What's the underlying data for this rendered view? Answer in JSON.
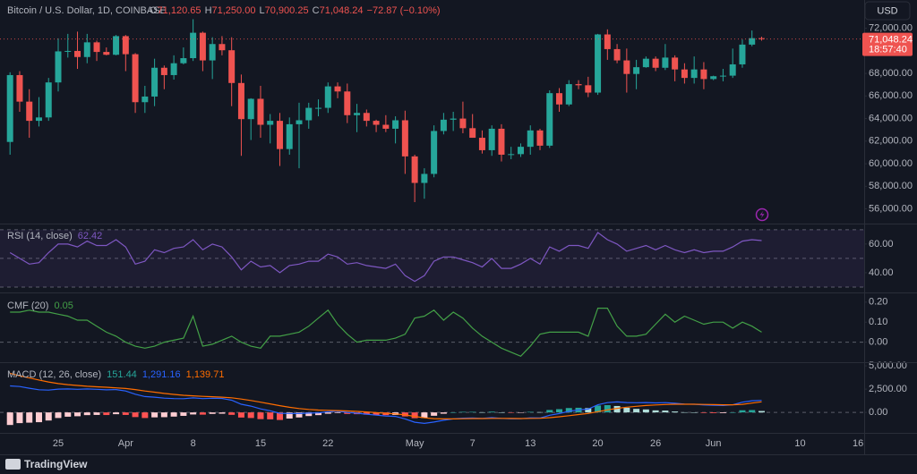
{
  "currency": "USD",
  "branding": "TradingView",
  "chart_data": [
    {
      "type": "candlestick",
      "title": "Bitcoin / U.S. Dollar, 1D, COINBASE",
      "ohlc_letters": [
        "O",
        "H",
        "L",
        "C"
      ],
      "change_label": "−72.87 (−0.10%)",
      "countdown": "18:57:40",
      "up_color": "#26a69a",
      "down_color": "#ef5350",
      "ylim": [
        54700,
        74500
      ],
      "yticks": [
        {
          "value": 56000,
          "label": "56,000.00"
        },
        {
          "value": 58000,
          "label": "58,000.00"
        },
        {
          "value": 60000,
          "label": "60,000.00"
        },
        {
          "value": 62000,
          "label": "62,000.00"
        },
        {
          "value": 64000,
          "label": "64,000.00"
        },
        {
          "value": 66000,
          "label": "66,000.00"
        },
        {
          "value": 68000,
          "label": "68,000.00"
        },
        {
          "value": 70000,
          "label": "70,000.00"
        },
        {
          "value": 72000,
          "label": "72,000.00"
        }
      ],
      "categories": [
        null,
        null,
        null,
        null,
        null,
        "25",
        null,
        null,
        null,
        null,
        null,
        null,
        "Apr",
        null,
        null,
        null,
        null,
        null,
        null,
        "8",
        null,
        null,
        null,
        null,
        null,
        null,
        "15",
        null,
        null,
        null,
        null,
        null,
        null,
        "22",
        null,
        null,
        null,
        null,
        null,
        null,
        null,
        null,
        "May",
        null,
        null,
        null,
        null,
        null,
        "7",
        null,
        null,
        null,
        null,
        null,
        "13",
        null,
        null,
        null,
        null,
        null,
        null,
        "20",
        null,
        null,
        null,
        null,
        null,
        "26",
        null,
        null,
        null,
        null,
        null,
        "Jun",
        null,
        null,
        null,
        null,
        null,
        null,
        null,
        null,
        "10",
        null,
        null,
        null,
        null,
        null,
        "16"
      ],
      "open": [
        61930,
        67850,
        65500,
        63800,
        64100,
        67200,
        69950,
        69990,
        69450,
        70750,
        69900,
        69650,
        71300,
        69700,
        65450,
        65950,
        68500,
        67850,
        68900,
        69350,
        71600,
        69150,
        70600,
        70050,
        67150,
        63950,
        65750,
        63450,
        63800,
        61300,
        63500,
        63850,
        64950,
        64950,
        66850,
        66400,
        64300,
        64500,
        63800,
        63450,
        63100,
        63850,
        60650,
        58300,
        59100,
        62900,
        63900,
        64000,
        63150,
        62300,
        61200,
        63100,
        60800,
        60850,
        61500,
        62950,
        61600,
        66250,
        65250,
        67050,
        66950,
        66300,
        71450,
        70150,
        69150,
        67950,
        68550,
        69300,
        68500,
        69400,
        68350,
        67600,
        68350,
        67500,
        67750,
        67800,
        68800,
        70550,
        71120.65,
        null,
        null,
        null,
        null,
        null,
        null,
        null,
        null,
        null,
        null
      ],
      "high": [
        68100,
        68200,
        66600,
        65900,
        67600,
        71100,
        71500,
        71700,
        71500,
        70900,
        70300,
        71400,
        71400,
        69800,
        66900,
        69300,
        68700,
        69600,
        70300,
        72800,
        71700,
        71200,
        71300,
        71200,
        67900,
        65800,
        66900,
        64400,
        64500,
        64100,
        65400,
        65400,
        65700,
        67200,
        67200,
        67100,
        65300,
        64800,
        63900,
        64300,
        64200,
        64700,
        60800,
        59600,
        63400,
        64500,
        64600,
        65500,
        64400,
        62950,
        63400,
        63500,
        61500,
        61800,
        63400,
        63100,
        66500,
        66700,
        67400,
        67400,
        67700,
        71500,
        71900,
        70600,
        70200,
        69200,
        69500,
        69500,
        70600,
        69600,
        68900,
        69500,
        69000,
        67800,
        68400,
        70200,
        71000,
        71800,
        71250,
        null,
        null,
        null,
        null,
        null,
        null,
        null,
        null,
        null,
        null
      ],
      "low": [
        60800,
        64600,
        62300,
        63300,
        63800,
        66400,
        69400,
        68400,
        68900,
        69100,
        69600,
        69600,
        68200,
        64500,
        64500,
        65100,
        66600,
        67450,
        68800,
        69100,
        68200,
        67500,
        69600,
        65100,
        60700,
        62100,
        62300,
        61800,
        59800,
        60800,
        59600,
        63100,
        64200,
        64500,
        65800,
        63600,
        62800,
        63300,
        62800,
        62800,
        61800,
        59100,
        56600,
        56900,
        58800,
        62600,
        62900,
        62700,
        62300,
        60900,
        60700,
        60200,
        60400,
        60600,
        60800,
        61200,
        61400,
        64600,
        65100,
        66600,
        65900,
        66100,
        69200,
        68900,
        66300,
        66600,
        68500,
        68200,
        68300,
        67300,
        67100,
        67100,
        66600,
        67400,
        67300,
        67600,
        68500,
        70400,
        70900.25,
        null,
        null,
        null,
        null,
        null,
        null,
        null,
        null,
        null,
        null
      ],
      "close": [
        67850,
        65500,
        63800,
        64100,
        67200,
        69950,
        69990,
        69450,
        70750,
        69900,
        69650,
        71300,
        69700,
        65450,
        65950,
        68500,
        67850,
        68900,
        69350,
        71600,
        69150,
        70600,
        70050,
        67150,
        63950,
        65750,
        63450,
        63800,
        61300,
        63500,
        63850,
        64950,
        64950,
        66850,
        66400,
        64300,
        64500,
        63800,
        63450,
        63100,
        63850,
        60650,
        58300,
        59100,
        62900,
        63900,
        64000,
        63150,
        62300,
        61200,
        63100,
        60800,
        60850,
        61500,
        62950,
        61600,
        66250,
        65250,
        67050,
        66950,
        66300,
        71450,
        70150,
        69150,
        67950,
        68550,
        69300,
        68500,
        69400,
        68350,
        67600,
        68350,
        67500,
        67750,
        67800,
        68800,
        70550,
        71121.11,
        71048.24,
        null,
        null,
        null,
        null,
        null,
        null,
        null,
        null,
        null,
        null
      ],
      "value_labels": {
        "open": {
          "78": "71,120.65"
        },
        "high": {
          "78": "71,250.00"
        },
        "low": {
          "78": "70,900.25"
        },
        "close": {
          "78": "71,048.24"
        }
      }
    },
    {
      "type": "line",
      "title": "RSI (14, close)",
      "ylim": [
        27.5,
        73
      ],
      "yticks": [
        {
          "value": 40,
          "label": "40.00"
        },
        {
          "value": 60,
          "label": "60.00"
        }
      ],
      "bands": [
        30,
        50,
        70
      ],
      "band_fill": "#7e57c2",
      "series": [
        {
          "name": "RSI",
          "color": "#7e57c2",
          "values": [
            54,
            50,
            46,
            47,
            54,
            60,
            60,
            58,
            62,
            59,
            59,
            63,
            58,
            46,
            48,
            56,
            54,
            57,
            58,
            63,
            56,
            60,
            58,
            51,
            42,
            48,
            44,
            45,
            40,
            45,
            46,
            48,
            48,
            53,
            51,
            46,
            47,
            45,
            44,
            43,
            46,
            38,
            34,
            38,
            48,
            51,
            51,
            49,
            47,
            44,
            50,
            43,
            43,
            46,
            50,
            46,
            58,
            55,
            59,
            59,
            57,
            68,
            63,
            60,
            55,
            57,
            59,
            56,
            59,
            56,
            54,
            56,
            54,
            55,
            55,
            58,
            62,
            63,
            62.42,
            null,
            null,
            null,
            null,
            null,
            null,
            null,
            null,
            null,
            null
          ]
        }
      ]
    },
    {
      "type": "line",
      "title": "CMF (20)",
      "ylim": [
        -0.1,
        0.235
      ],
      "yticks": [
        {
          "value": 0,
          "label": "0.00"
        },
        {
          "value": 0.1,
          "label": "0.10"
        },
        {
          "value": 0.2,
          "label": "0.20"
        }
      ],
      "bands": [
        0
      ],
      "series": [
        {
          "name": "CMF",
          "color": "#43a047",
          "values": [
            0.15,
            0.15,
            0.16,
            0.15,
            0.15,
            0.14,
            0.13,
            0.11,
            0.11,
            0.08,
            0.05,
            0.03,
            0.0,
            -0.02,
            -0.03,
            -0.02,
            0.0,
            0.01,
            0.02,
            0.13,
            -0.02,
            -0.01,
            0.01,
            0.03,
            0.0,
            -0.02,
            -0.03,
            0.03,
            0.03,
            0.04,
            0.05,
            0.08,
            0.12,
            0.16,
            0.09,
            0.04,
            0.0,
            0.01,
            0.01,
            0.01,
            0.02,
            0.04,
            0.12,
            0.13,
            0.16,
            0.11,
            0.15,
            0.12,
            0.07,
            0.03,
            0.0,
            -0.03,
            -0.05,
            -0.07,
            -0.02,
            0.04,
            0.05,
            0.05,
            0.05,
            0.05,
            0.03,
            0.17,
            0.17,
            0.08,
            0.03,
            0.03,
            0.04,
            0.09,
            0.14,
            0.1,
            0.13,
            0.11,
            0.09,
            0.1,
            0.1,
            0.07,
            0.1,
            0.08,
            0.05,
            null,
            null,
            null,
            null,
            null,
            null,
            null,
            null,
            null,
            null
          ]
        }
      ]
    },
    {
      "type": "combo",
      "title": "MACD (12, 26, close)",
      "ylim": [
        -2100,
        5200
      ],
      "yticks": [
        {
          "value": 0,
          "label": "0.00"
        },
        {
          "value": 2500,
          "label": "2,500.00"
        },
        {
          "value": 5000,
          "label": "5,000.00"
        }
      ],
      "bands": [
        0
      ],
      "series": [
        {
          "name": "Histogram",
          "type": "bar",
          "color": "#26a69a",
          "colors": {
            "up_rising": "#26a69a",
            "up_falling": "#b2dfdb",
            "down_rising": "#ffcdd2",
            "down_falling": "#ff5252"
          },
          "values": [
            -1350,
            -1150,
            -1100,
            -1050,
            -870,
            -600,
            -460,
            -410,
            -290,
            -270,
            -280,
            -190,
            -270,
            -500,
            -600,
            -530,
            -510,
            -450,
            -370,
            -220,
            -240,
            -160,
            -140,
            -260,
            -550,
            -600,
            -720,
            -740,
            -810,
            -660,
            -540,
            -390,
            -290,
            -140,
            -70,
            -160,
            -190,
            -240,
            -270,
            -290,
            -270,
            -430,
            -620,
            -600,
            -360,
            -140,
            0,
            60,
            60,
            20,
            80,
            0,
            -40,
            -20,
            60,
            30,
            260,
            350,
            470,
            500,
            470,
            740,
            780,
            690,
            500,
            380,
            320,
            220,
            200,
            100,
            20,
            0,
            -60,
            -80,
            -80,
            0,
            230,
            250,
            151.44,
            null,
            null,
            null,
            null,
            null,
            null,
            null,
            null,
            null,
            null
          ]
        },
        {
          "name": "MACD",
          "type": "line",
          "color": "#2962ff",
          "values": [
            2850,
            2780,
            2600,
            2430,
            2400,
            2500,
            2520,
            2480,
            2520,
            2480,
            2420,
            2450,
            2300,
            1950,
            1700,
            1640,
            1530,
            1480,
            1470,
            1560,
            1480,
            1520,
            1500,
            1310,
            880,
            680,
            380,
            180,
            -90,
            -110,
            -120,
            -70,
            -40,
            80,
            130,
            0,
            -80,
            -190,
            -290,
            -380,
            -430,
            -700,
            -1050,
            -1180,
            -1030,
            -840,
            -700,
            -620,
            -600,
            -640,
            -560,
            -640,
            -690,
            -680,
            -580,
            -600,
            -300,
            -120,
            120,
            270,
            360,
            820,
            1050,
            1130,
            1060,
            1040,
            1060,
            1020,
            1050,
            980,
            900,
            880,
            800,
            760,
            740,
            820,
            1100,
            1250,
            1291.16,
            null,
            null,
            null,
            null,
            null,
            null,
            null,
            null,
            null,
            null
          ],
          "value_labels": {
            "78": "1,291.16"
          }
        },
        {
          "name": "Signal",
          "type": "line",
          "color": "#ff6d00",
          "values": [
            4200,
            3930,
            3700,
            3480,
            3270,
            3100,
            2980,
            2890,
            2810,
            2750,
            2700,
            2640,
            2570,
            2450,
            2300,
            2170,
            2040,
            1930,
            1840,
            1780,
            1720,
            1680,
            1640,
            1570,
            1430,
            1280,
            1100,
            920,
            720,
            550,
            420,
            320,
            250,
            220,
            200,
            160,
            110,
            50,
            -20,
            -90,
            -160,
            -270,
            -430,
            -580,
            -670,
            -700,
            -700,
            -680,
            -660,
            -660,
            -640,
            -640,
            -650,
            -660,
            -640,
            -630,
            -560,
            -470,
            -350,
            -230,
            -110,
            80,
            270,
            440,
            560,
            660,
            740,
            800,
            850,
            880,
            880,
            880,
            860,
            840,
            820,
            820,
            870,
            1000,
            1139.71,
            null,
            null,
            null,
            null,
            null,
            null,
            null,
            null,
            null,
            null
          ],
          "value_labels": {
            "78": "1,139.71"
          }
        }
      ]
    }
  ]
}
